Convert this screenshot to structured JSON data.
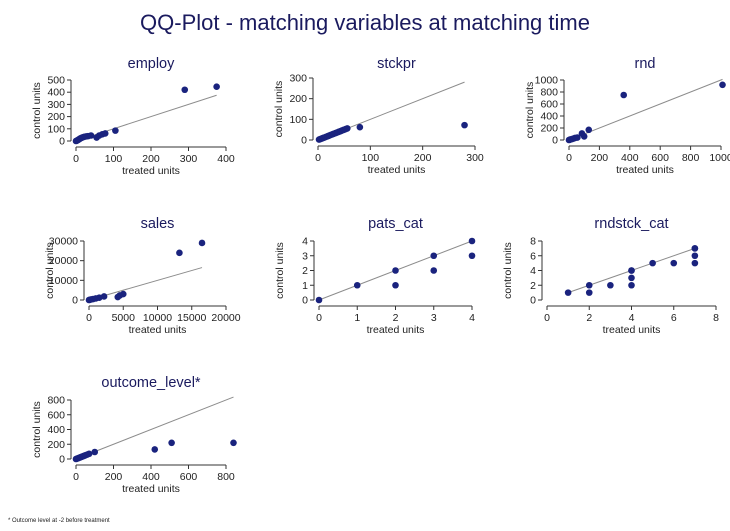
{
  "title": "QQ-Plot - matching variables at matching time",
  "footnote": "* Outcome level at -2 before treatment",
  "colors": {
    "title": "#1a1a5e",
    "point": "#1a237e",
    "line": "#8c8c8c",
    "axis": "#333333"
  },
  "chart_data": [
    {
      "type": "scatter",
      "title": "employ",
      "xlabel": "treated units",
      "ylabel": "control units",
      "xlim": [
        0,
        400
      ],
      "ylim": [
        0,
        500
      ],
      "xticks": [
        "0",
        "100",
        "200",
        "300",
        "400"
      ],
      "xtick_values": [
        0,
        100,
        200,
        300,
        400
      ],
      "yticks": [
        "0",
        "100",
        "200",
        "300",
        "400",
        "500"
      ],
      "ytick_values": [
        0,
        100,
        200,
        300,
        400,
        500
      ],
      "reference_line": [
        [
          0,
          0
        ],
        [
          375,
          375
        ]
      ],
      "x": [
        0,
        2,
        4,
        6,
        8,
        10,
        12,
        15,
        18,
        22,
        27,
        32,
        40,
        55,
        62,
        70,
        78,
        105,
        290,
        375
      ],
      "y": [
        0,
        3,
        6,
        10,
        14,
        18,
        22,
        26,
        30,
        34,
        38,
        40,
        45,
        28,
        45,
        55,
        62,
        85,
        420,
        445
      ]
    },
    {
      "type": "scatter",
      "title": "stckpr",
      "xlabel": "treated units",
      "ylabel": "control units",
      "xlim": [
        0,
        300
      ],
      "ylim": [
        0,
        300
      ],
      "xticks": [
        "0",
        "100",
        "200",
        "300"
      ],
      "xtick_values": [
        0,
        100,
        200,
        300
      ],
      "yticks": [
        "0",
        "100",
        "200",
        "300"
      ],
      "ytick_values": [
        0,
        100,
        200,
        300
      ],
      "reference_line": [
        [
          0,
          0
        ],
        [
          280,
          280
        ]
      ],
      "x": [
        2,
        4,
        6,
        8,
        10,
        12,
        15,
        18,
        20,
        22,
        25,
        28,
        30,
        33,
        35,
        38,
        40,
        43,
        45,
        48,
        50,
        53,
        56,
        80,
        280
      ],
      "y": [
        2,
        4,
        6,
        8,
        10,
        12,
        15,
        18,
        20,
        22,
        25,
        28,
        30,
        33,
        35,
        38,
        40,
        43,
        45,
        48,
        50,
        53,
        56,
        62,
        72
      ]
    },
    {
      "type": "scatter",
      "title": "rnd",
      "xlabel": "treated units",
      "ylabel": "control units",
      "xlim": [
        0,
        1000
      ],
      "ylim": [
        0,
        1000
      ],
      "xticks": [
        "0",
        "200",
        "400",
        "600",
        "800",
        "1000"
      ],
      "xtick_values": [
        0,
        200,
        400,
        600,
        800,
        1000
      ],
      "yticks": [
        "0",
        "200",
        "400",
        "600",
        "800",
        "1000"
      ],
      "ytick_values": [
        0,
        200,
        400,
        600,
        800,
        1000
      ],
      "reference_line": [
        [
          0,
          0
        ],
        [
          1010,
          1010
        ]
      ],
      "x": [
        0,
        5,
        10,
        20,
        30,
        40,
        55,
        85,
        100,
        130,
        360,
        1010
      ],
      "y": [
        0,
        5,
        10,
        15,
        25,
        35,
        40,
        110,
        60,
        170,
        750,
        920
      ]
    },
    {
      "type": "scatter",
      "title": "sales",
      "xlabel": "treated units",
      "ylabel": "control units",
      "xlim": [
        0,
        20000
      ],
      "ylim": [
        0,
        30000
      ],
      "xticks": [
        "0",
        "5000",
        "10000",
        "15000",
        "20000"
      ],
      "xtick_values": [
        0,
        5000,
        10000,
        15000,
        20000
      ],
      "yticks": [
        "0",
        "10000",
        "20000",
        "30000"
      ],
      "ytick_values": [
        0,
        10000,
        20000,
        30000
      ],
      "reference_line": [
        [
          0,
          0
        ],
        [
          16500,
          16500
        ]
      ],
      "x": [
        0,
        100,
        300,
        600,
        1000,
        1500,
        2200,
        4200,
        4500,
        5000,
        13200,
        16500
      ],
      "y": [
        0,
        100,
        300,
        500,
        800,
        1200,
        1800,
        1500,
        2300,
        3000,
        24000,
        29000
      ]
    },
    {
      "type": "scatter",
      "title": "pats_cat",
      "xlabel": "treated units",
      "ylabel": "control units",
      "xlim": [
        0,
        4
      ],
      "ylim": [
        0,
        4
      ],
      "xticks": [
        "0",
        "1",
        "2",
        "3",
        "4"
      ],
      "xtick_values": [
        0,
        1,
        2,
        3,
        4
      ],
      "yticks": [
        "0",
        "1",
        "2",
        "3",
        "4"
      ],
      "ytick_values": [
        0,
        1,
        2,
        3,
        4
      ],
      "reference_line": [
        [
          0,
          0
        ],
        [
          4,
          4
        ]
      ],
      "x": [
        0,
        1,
        2,
        2,
        3,
        3,
        4,
        4
      ],
      "y": [
        0,
        1,
        1,
        2,
        2,
        3,
        3,
        4
      ]
    },
    {
      "type": "scatter",
      "title": "rndstck_cat",
      "xlabel": "treated units",
      "ylabel": "control units",
      "xlim": [
        0,
        8
      ],
      "ylim": [
        0,
        8
      ],
      "xticks": [
        "0",
        "2",
        "4",
        "6",
        "8"
      ],
      "xtick_values": [
        0,
        2,
        4,
        6,
        8
      ],
      "yticks": [
        "0",
        "2",
        "4",
        "6",
        "8"
      ],
      "ytick_values": [
        0,
        2,
        4,
        6,
        8
      ],
      "reference_line": [
        [
          1,
          1
        ],
        [
          7,
          7
        ]
      ],
      "x": [
        1,
        2,
        2,
        3,
        4,
        4,
        4,
        4,
        5,
        6,
        7,
        7,
        7,
        7
      ],
      "y": [
        1,
        1,
        2,
        2,
        2,
        3,
        4,
        4,
        5,
        5,
        5,
        6,
        7,
        7
      ]
    },
    {
      "type": "scatter",
      "title": "outcome_level*",
      "xlabel": "treated units",
      "ylabel": "control units",
      "xlim": [
        0,
        800
      ],
      "ylim": [
        0,
        800
      ],
      "xticks": [
        "0",
        "200",
        "400",
        "600",
        "800"
      ],
      "xtick_values": [
        0,
        200,
        400,
        600,
        800
      ],
      "yticks": [
        "0",
        "200",
        "400",
        "600",
        "800"
      ],
      "ytick_values": [
        0,
        200,
        400,
        600,
        800
      ],
      "reference_line": [
        [
          0,
          0
        ],
        [
          840,
          840
        ]
      ],
      "x": [
        0,
        5,
        10,
        15,
        20,
        25,
        30,
        35,
        40,
        45,
        50,
        60,
        70,
        100,
        420,
        510,
        840
      ],
      "y": [
        0,
        5,
        10,
        15,
        20,
        25,
        30,
        35,
        40,
        45,
        50,
        60,
        70,
        95,
        130,
        220,
        220
      ]
    }
  ]
}
